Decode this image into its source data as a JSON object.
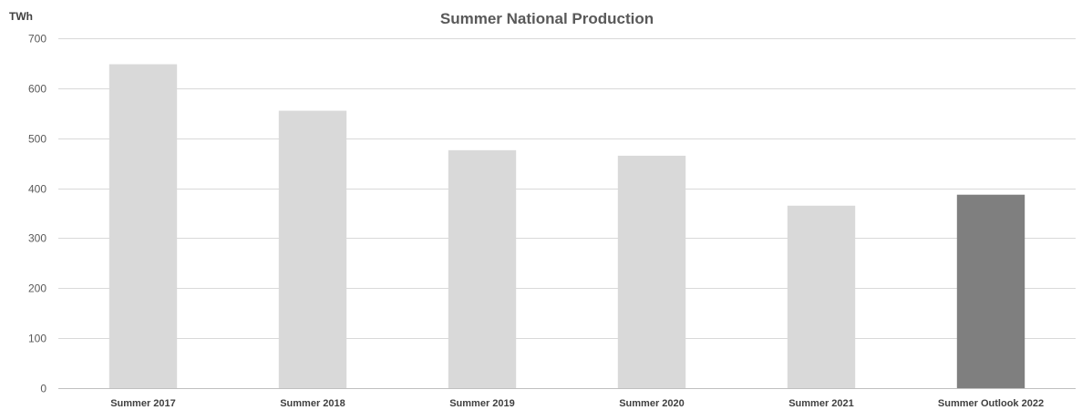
{
  "chart_data": {
    "type": "bar",
    "title": "Summer National Production",
    "ylabel": "TWh",
    "xlabel": "",
    "ylim": [
      0,
      700
    ],
    "yticks": [
      0,
      100,
      200,
      300,
      400,
      500,
      600,
      700
    ],
    "grid": true,
    "legend": "none",
    "categories": [
      "Summer 2017",
      "Summer 2018",
      "Summer 2019",
      "Summer 2020",
      "Summer 2021",
      "Summer Outlook 2022"
    ],
    "values": [
      648,
      555,
      476,
      465,
      365,
      387
    ],
    "colors": {
      "actual": "#d9d9d9",
      "outlook": "#7f7f7f"
    },
    "highlight_index": 5
  }
}
